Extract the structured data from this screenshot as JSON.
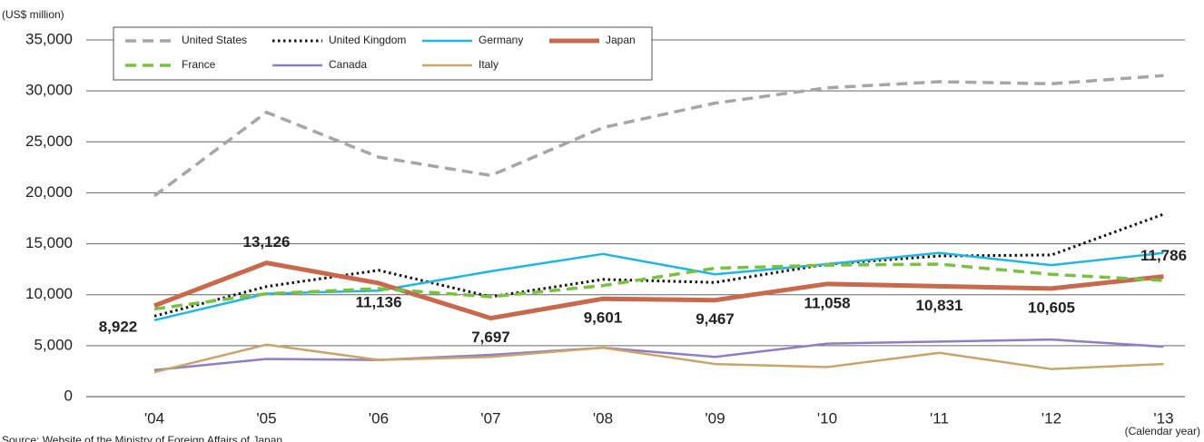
{
  "chart_data": {
    "type": "line",
    "y_axis_label": "(US$ million)",
    "x_axis_label": "(Calendar year)",
    "source": "Source: Website of the Ministry of Foreign Affairs of Japan",
    "categories": [
      "'04",
      "'05",
      "'06",
      "'07",
      "'08",
      "'09",
      "'10",
      "'11",
      "'12",
      "'13"
    ],
    "ylim": [
      0,
      35000
    ],
    "yticks": [
      0,
      {
        "value": 5000,
        "label": "5,000"
      },
      {
        "value": 10000,
        "label": "10,000"
      },
      {
        "value": 15000,
        "label": "15,000"
      },
      {
        "value": 20000,
        "label": "20,000"
      },
      {
        "value": 25000,
        "label": "25,000"
      },
      {
        "value": 30000,
        "label": "30,000"
      },
      {
        "value": 35000,
        "label": "35,000"
      }
    ],
    "grid": true,
    "legend": "top-left",
    "series": [
      {
        "name": "United States",
        "color": "#a6a6a6",
        "style": "dashed",
        "values": [
          19700,
          27900,
          23500,
          21700,
          26400,
          28800,
          30300,
          30900,
          30700,
          31500
        ]
      },
      {
        "name": "United Kingdom",
        "color": "#111111",
        "style": "dotted",
        "values": [
          7900,
          10800,
          12400,
          9800,
          11500,
          11200,
          13000,
          13800,
          13900,
          17900
        ]
      },
      {
        "name": "Germany",
        "color": "#1fb6e6",
        "style": "solid",
        "values": [
          7500,
          10100,
          10400,
          12300,
          14000,
          12000,
          13000,
          14100,
          12900,
          14100
        ]
      },
      {
        "name": "Japan",
        "color": "#c8694e",
        "style": "bold",
        "values": [
          8922,
          13126,
          11136,
          7697,
          9601,
          9467,
          11058,
          10831,
          10605,
          11786
        ],
        "value_labels": [
          "8,922",
          "13,126",
          "11,136",
          "7,697",
          "9,601",
          "9,467",
          "11,058",
          "10,831",
          "10,605",
          "11,786"
        ]
      },
      {
        "name": "France",
        "color": "#7ac143",
        "style": "dashed",
        "values": [
          8600,
          10100,
          10600,
          9800,
          10900,
          12600,
          12900,
          13000,
          12000,
          11400
        ]
      },
      {
        "name": "Canada",
        "color": "#8f7fc0",
        "style": "solid",
        "values": [
          2600,
          3700,
          3600,
          4100,
          4800,
          3900,
          5200,
          5400,
          5600,
          4900
        ]
      },
      {
        "name": "Italy",
        "color": "#c9a46b",
        "style": "solid",
        "values": [
          2400,
          5100,
          3600,
          3900,
          4800,
          3200,
          2900,
          4300,
          2700,
          3200
        ]
      }
    ]
  }
}
